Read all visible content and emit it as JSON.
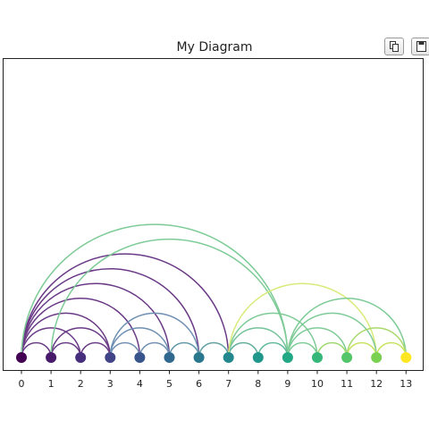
{
  "title": "My Diagram",
  "toolbar": {
    "copy_icon": "copy-icon",
    "save_icon": "floppy-disk-icon"
  },
  "chart_data": {
    "type": "arc-diagram",
    "title": "My Diagram",
    "xlabel": "",
    "ylabel": "",
    "nodes": [
      0,
      1,
      2,
      3,
      4,
      5,
      6,
      7,
      8,
      9,
      10,
      11,
      12,
      13
    ],
    "x_ticks": [
      "0",
      "1",
      "2",
      "3",
      "4",
      "5",
      "6",
      "7",
      "8",
      "9",
      "10",
      "11",
      "12",
      "13"
    ],
    "node_colors": [
      "#440154",
      "#481a6c",
      "#472f7d",
      "#414487",
      "#39568c",
      "#31688e",
      "#2a788e",
      "#23888e",
      "#1f988b",
      "#22a884",
      "#35b779",
      "#54c568",
      "#7ad151",
      "#fde725"
    ],
    "edges": [
      {
        "source": 0,
        "target": 1,
        "color": "#6a3a86"
      },
      {
        "source": 0,
        "target": 2,
        "color": "#6a3a86"
      },
      {
        "source": 0,
        "target": 3,
        "color": "#6a3a86"
      },
      {
        "source": 0,
        "target": 4,
        "color": "#6a3a86"
      },
      {
        "source": 0,
        "target": 5,
        "color": "#6a3a86"
      },
      {
        "source": 0,
        "target": 6,
        "color": "#6a3a86"
      },
      {
        "source": 0,
        "target": 7,
        "color": "#6a3a86"
      },
      {
        "source": 0,
        "target": 9,
        "color": "#7dcb96"
      },
      {
        "source": 1,
        "target": 2,
        "color": "#6a3a86"
      },
      {
        "source": 1,
        "target": 3,
        "color": "#6a3a86"
      },
      {
        "source": 1,
        "target": 9,
        "color": "#7dcb96"
      },
      {
        "source": 2,
        "target": 3,
        "color": "#6a3a86"
      },
      {
        "source": 3,
        "target": 4,
        "color": "#6e8fb2"
      },
      {
        "source": 3,
        "target": 5,
        "color": "#6e8fb2"
      },
      {
        "source": 3,
        "target": 6,
        "color": "#6e8fb2"
      },
      {
        "source": 4,
        "target": 5,
        "color": "#6e8fb2"
      },
      {
        "source": 5,
        "target": 6,
        "color": "#5f96a8"
      },
      {
        "source": 6,
        "target": 7,
        "color": "#5f9fa0"
      },
      {
        "source": 7,
        "target": 8,
        "color": "#5fae9a"
      },
      {
        "source": 7,
        "target": 9,
        "color": "#73c39a"
      },
      {
        "source": 7,
        "target": 10,
        "color": "#7dcb96"
      },
      {
        "source": 7,
        "target": 12,
        "color": "#d8ea7a"
      },
      {
        "source": 8,
        "target": 9,
        "color": "#5fb99a"
      },
      {
        "source": 9,
        "target": 10,
        "color": "#7dcb96"
      },
      {
        "source": 9,
        "target": 11,
        "color": "#7dcb96"
      },
      {
        "source": 9,
        "target": 12,
        "color": "#7dcb96"
      },
      {
        "source": 9,
        "target": 13,
        "color": "#7dcb96"
      },
      {
        "source": 10,
        "target": 11,
        "color": "#9fd86e"
      },
      {
        "source": 11,
        "target": 12,
        "color": "#c6e25e"
      },
      {
        "source": 11,
        "target": 13,
        "color": "#a9d96a"
      },
      {
        "source": 12,
        "target": 13,
        "color": "#c6e25e"
      }
    ],
    "grid": false,
    "legend": "none"
  }
}
